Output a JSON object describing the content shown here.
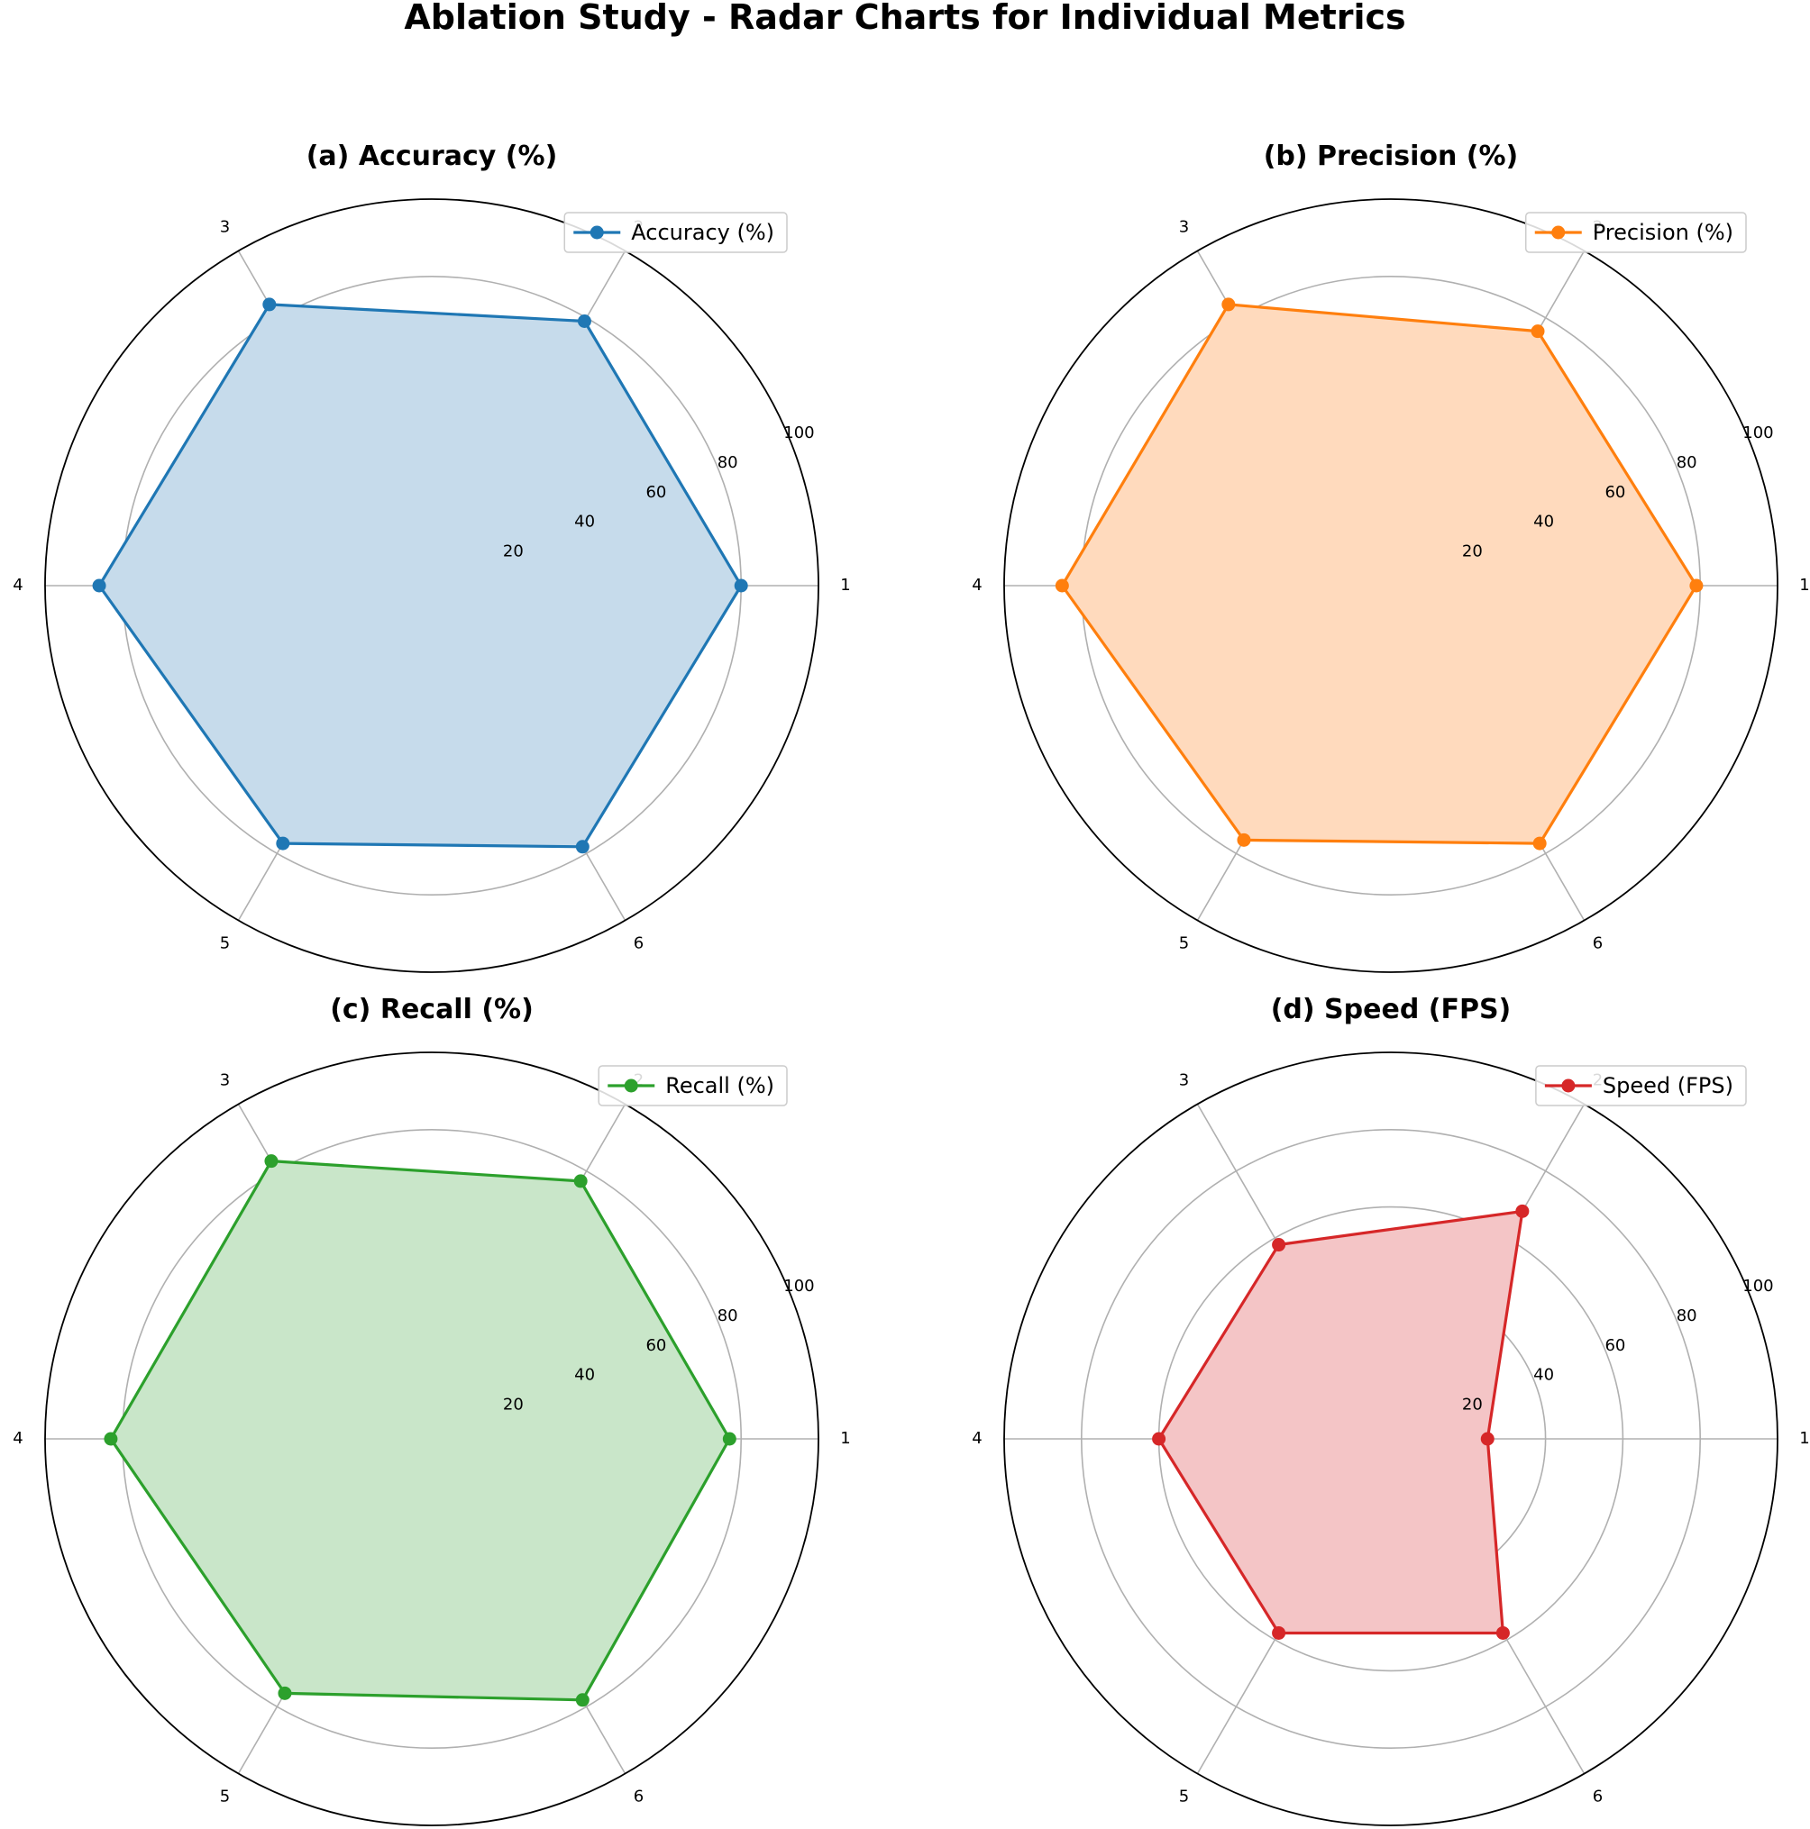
{
  "figure_title": "Ablation Study - Radar Charts for Individual Metrics",
  "chart_data": [
    {
      "type": "radar",
      "title": "(a) Accuracy (%)",
      "categories": [
        "1",
        "2",
        "3",
        "4",
        "5",
        "6"
      ],
      "series": [
        {
          "name": "Accuracy (%)",
          "values": [
            80,
            79,
            84,
            86,
            77,
            78
          ]
        }
      ],
      "rlim": [
        0,
        100
      ],
      "rticks": [
        "20",
        "40",
        "60",
        "80",
        "100"
      ],
      "color": "#1f77b4",
      "fill_color": "#c6dbeb",
      "legend_position": "top-right",
      "grid": true
    },
    {
      "type": "radar",
      "title": "(b) Precision (%)",
      "categories": [
        "1",
        "2",
        "3",
        "4",
        "5",
        "6"
      ],
      "series": [
        {
          "name": "Precision (%)",
          "values": [
            79,
            76,
            84,
            85,
            76,
            77
          ]
        }
      ],
      "rlim": [
        0,
        100
      ],
      "rticks": [
        "20",
        "40",
        "60",
        "80",
        "100"
      ],
      "color": "#ff7f0e",
      "fill_color": "#ffdabd",
      "legend_position": "top-right",
      "grid": true
    },
    {
      "type": "radar",
      "title": "(c) Recall (%)",
      "categories": [
        "1",
        "2",
        "3",
        "4",
        "5",
        "6"
      ],
      "series": [
        {
          "name": "Recall (%)",
          "values": [
            77,
            77,
            83,
            83,
            76,
            78
          ]
        }
      ],
      "rlim": [
        0,
        100
      ],
      "rticks": [
        "20",
        "40",
        "60",
        "80",
        "100"
      ],
      "color": "#2ca02c",
      "fill_color": "#c9e6c9",
      "legend_position": "top-right",
      "grid": true
    },
    {
      "type": "radar",
      "title": "(d) Speed (FPS)",
      "categories": [
        "1",
        "2",
        "3",
        "4",
        "5",
        "6"
      ],
      "series": [
        {
          "name": "Speed (FPS)",
          "values": [
            25,
            68,
            58,
            60,
            58,
            58
          ]
        }
      ],
      "rlim": [
        0,
        100
      ],
      "rticks": [
        "20",
        "40",
        "60",
        "80",
        "100"
      ],
      "color": "#d62728",
      "fill_color": "#f4c5c6",
      "legend_position": "top-right",
      "grid": true
    }
  ]
}
